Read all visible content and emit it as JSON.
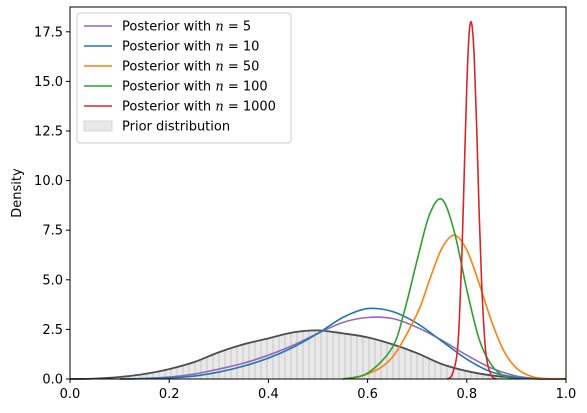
{
  "chart_data": {
    "type": "line",
    "title": "",
    "xlabel": "",
    "ylabel": "Density",
    "xlim": [
      0,
      1
    ],
    "ylim": [
      0,
      18.75
    ],
    "grid": false,
    "legend_position": "top-left",
    "x_ticks": [
      "0.0",
      "0.2",
      "0.4",
      "0.6",
      "0.8",
      "1.0"
    ],
    "x_tick_values": [
      0,
      0.2,
      0.4,
      0.6,
      0.8,
      1.0
    ],
    "y_ticks": [
      "0.0",
      "2.5",
      "5.0",
      "7.5",
      "10.0",
      "12.5",
      "15.0",
      "17.5"
    ],
    "y_tick_values": [
      0,
      2.5,
      5,
      7.5,
      10,
      12.5,
      15,
      17.5
    ],
    "prior": {
      "name": "Prior distribution",
      "fill_color": "#e8e8e8",
      "hatch_color": "#bdbdbd",
      "line_color": "#4d4d4d",
      "x": [
        0.0,
        0.05,
        0.1,
        0.15,
        0.2,
        0.25,
        0.3,
        0.35,
        0.4,
        0.45,
        0.5,
        0.55,
        0.6,
        0.65,
        0.7,
        0.75,
        0.8,
        0.85,
        0.9,
        0.95,
        1.0
      ],
      "y": [
        0.0,
        0.02,
        0.1,
        0.25,
        0.5,
        0.85,
        1.35,
        1.75,
        2.05,
        2.35,
        2.45,
        2.3,
        2.1,
        1.75,
        1.3,
        0.75,
        0.4,
        0.18,
        0.06,
        0.01,
        0.0
      ]
    },
    "series": [
      {
        "name": "Posterior with n = 5",
        "color": "#9467bd",
        "x": [
          0.1,
          0.15,
          0.2,
          0.25,
          0.3,
          0.35,
          0.4,
          0.45,
          0.5,
          0.55,
          0.6,
          0.65,
          0.7,
          0.75,
          0.8,
          0.85,
          0.9,
          0.95
        ],
        "y": [
          0.0,
          0.03,
          0.1,
          0.25,
          0.5,
          0.8,
          1.2,
          1.7,
          2.3,
          2.85,
          3.1,
          3.05,
          2.6,
          1.95,
          1.2,
          0.55,
          0.15,
          0.0
        ]
      },
      {
        "name": "Posterior with n = 10",
        "color": "#1f77b4",
        "x": [
          0.1,
          0.15,
          0.2,
          0.25,
          0.3,
          0.35,
          0.4,
          0.45,
          0.5,
          0.55,
          0.6,
          0.65,
          0.7,
          0.75,
          0.8,
          0.85,
          0.9,
          0.95
        ],
        "y": [
          0.0,
          0.02,
          0.06,
          0.15,
          0.35,
          0.65,
          1.05,
          1.6,
          2.3,
          3.1,
          3.55,
          3.4,
          2.8,
          1.9,
          1.0,
          0.35,
          0.08,
          0.0
        ]
      },
      {
        "name": "Posterior with n = 50",
        "color": "#ff7f0e",
        "x": [
          0.55,
          0.6,
          0.65,
          0.7,
          0.725,
          0.75,
          0.775,
          0.8,
          0.825,
          0.85,
          0.875,
          0.9,
          0.925,
          0.95,
          1.0
        ],
        "y": [
          0.0,
          0.25,
          1.1,
          3.3,
          5.0,
          6.6,
          7.25,
          6.5,
          4.8,
          2.9,
          1.4,
          0.55,
          0.18,
          0.04,
          0.0
        ]
      },
      {
        "name": "Posterior with n = 100",
        "color": "#2ca02c",
        "x": [
          0.55,
          0.6,
          0.65,
          0.675,
          0.7,
          0.725,
          0.75,
          0.775,
          0.8,
          0.825,
          0.85,
          0.875,
          0.9
        ],
        "y": [
          0.0,
          0.3,
          1.6,
          3.5,
          6.0,
          8.3,
          9.05,
          7.4,
          4.5,
          2.0,
          0.7,
          0.15,
          0.0
        ]
      },
      {
        "name": "Posterior with n = 1000",
        "color": "#d62728",
        "x": [
          0.76,
          0.77,
          0.78,
          0.785,
          0.79,
          0.795,
          0.8,
          0.805,
          0.81,
          0.815,
          0.82,
          0.825,
          0.83,
          0.835,
          0.84,
          0.85,
          0.86
        ],
        "y": [
          0.0,
          0.2,
          1.2,
          3.0,
          6.2,
          10.5,
          14.8,
          17.5,
          17.9,
          16.2,
          12.6,
          8.3,
          4.8,
          2.4,
          1.0,
          0.15,
          0.0
        ]
      }
    ]
  },
  "legend": {
    "prefix": "Posterior with ",
    "italic_n": "n",
    "equals": " = ",
    "items": [
      "5",
      "10",
      "50",
      "100",
      "1000"
    ],
    "prior_label": "Prior distribution"
  }
}
